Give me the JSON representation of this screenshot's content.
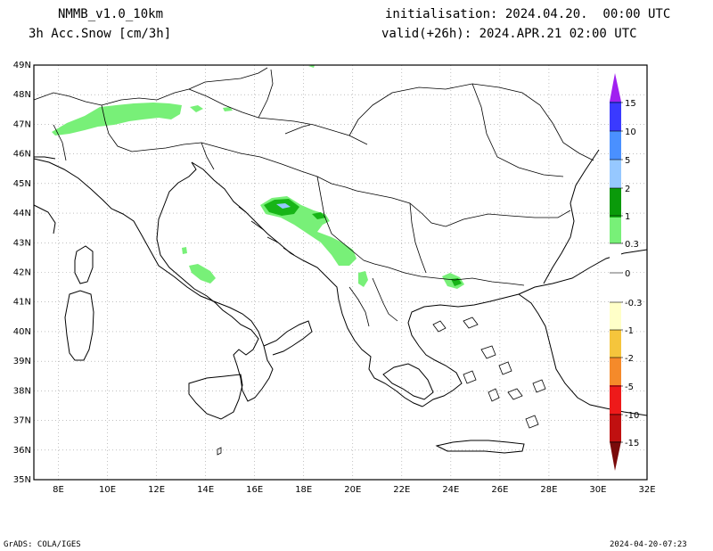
{
  "header": {
    "model": "NMMB_v1.0_10km",
    "variable": "3h Acc.Snow [cm/3h]",
    "initialisation": "initialisation: 2024.04.20.  00:00 UTC",
    "valid": "valid(+26h): 2024.APR.21 02:00 UTC"
  },
  "map": {
    "lon_range": [
      7,
      32
    ],
    "lat_range": [
      35,
      49
    ],
    "lon_ticks": [
      "8E",
      "10E",
      "12E",
      "14E",
      "16E",
      "18E",
      "20E",
      "22E",
      "24E",
      "26E",
      "28E",
      "30E",
      "32E"
    ],
    "lat_ticks": [
      "35N",
      "36N",
      "37N",
      "38N",
      "39N",
      "40N",
      "41N",
      "42N",
      "43N",
      "44N",
      "45N",
      "46N",
      "47N",
      "48N",
      "49N"
    ],
    "grid": true
  },
  "colorbar": {
    "labels": [
      "15",
      "10",
      "5",
      "2",
      "1",
      "0.3",
      "0",
      "-0.3",
      "-1",
      "-2",
      "-5",
      "-10",
      "-15"
    ],
    "colors": {
      "purple": "#a020f0",
      "blue_dark": "#3a3aff",
      "blue_mid": "#4a90ff",
      "blue_light": "#96c8ff",
      "green_dark": "#0a9a0a",
      "green_mid": "#17b517",
      "green_light": "#78f078",
      "cream": "#ffffc8",
      "yellow_light": "#f8ef90",
      "yellow": "#f5c53c",
      "orange": "#f58a2a",
      "red": "#ee1a1a",
      "red_dark": "#c01010",
      "maroon": "#7a0a0a"
    }
  },
  "footer": {
    "left": "GrADS: COLA/IGES",
    "right": "2024-04-20-07:23"
  }
}
